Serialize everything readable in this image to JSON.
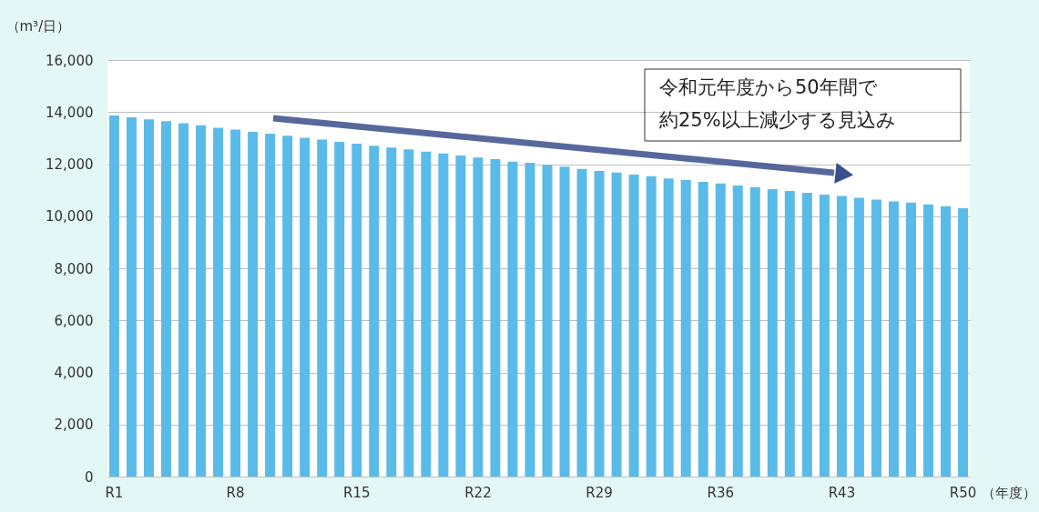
{
  "chart_data": {
    "type": "bar",
    "ylabel": "（m³/日）",
    "xlabel": "（年度）",
    "categories": [
      "R1",
      null,
      null,
      null,
      null,
      null,
      null,
      "R8",
      null,
      null,
      null,
      null,
      null,
      null,
      "R15",
      null,
      null,
      null,
      null,
      null,
      null,
      "R22",
      null,
      null,
      null,
      null,
      null,
      null,
      "R29",
      null,
      null,
      null,
      null,
      null,
      null,
      "R36",
      null,
      null,
      null,
      null,
      null,
      null,
      "R43",
      null,
      null,
      null,
      null,
      null,
      null,
      "R50"
    ],
    "values": [
      13870,
      13800,
      13720,
      13650,
      13570,
      13490,
      13400,
      13330,
      13240,
      13170,
      13090,
      13010,
      12940,
      12860,
      12790,
      12710,
      12640,
      12570,
      12480,
      12410,
      12330,
      12250,
      12190,
      12100,
      12050,
      11970,
      11900,
      11820,
      11740,
      11680,
      11600,
      11540,
      11450,
      11390,
      11320,
      11260,
      11180,
      11120,
      11040,
      10970,
      10900,
      10830,
      10780,
      10710,
      10640,
      10570,
      10520,
      10450,
      10380,
      10310
    ],
    "color": "#5bbbe8",
    "ylim": [
      0,
      16000
    ],
    "yticks": [
      {
        "value": 0,
        "label": "0"
      },
      {
        "value": 2000,
        "label": "2,000"
      },
      {
        "value": 4000,
        "label": "4,000"
      },
      {
        "value": 6000,
        "label": "6,000"
      },
      {
        "value": 8000,
        "label": "8,000"
      },
      {
        "value": 10000,
        "label": "10,000"
      },
      {
        "value": 12000,
        "label": "12,000"
      },
      {
        "value": 14000,
        "label": "14,000"
      },
      {
        "value": 16000,
        "label": "16,000"
      }
    ],
    "grid": "y",
    "annotations": [
      "令和元年度から50年間で",
      "約25%以上減少する見込み"
    ]
  }
}
